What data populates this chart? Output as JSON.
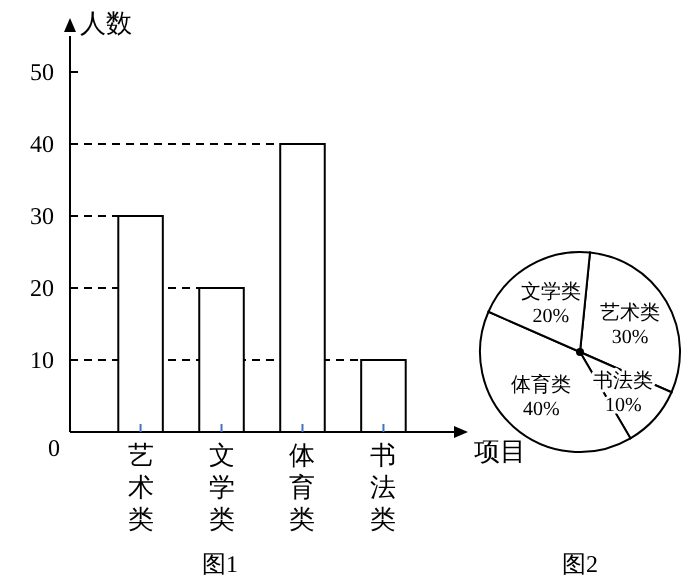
{
  "chart_data": [
    {
      "type": "bar",
      "ylabel": "人数",
      "xlabel": "项目",
      "categories": [
        "艺术类",
        "文学类",
        "体育类",
        "书法类"
      ],
      "values": [
        30,
        20,
        40,
        10
      ],
      "color": "#ffffff",
      "ylim": [
        0,
        55
      ],
      "yticks": [
        0,
        10,
        20,
        30,
        40,
        50
      ],
      "ref_lines": [
        {
          "axis": "y",
          "value": 40,
          "line_style": "dashed"
        },
        {
          "axis": "y",
          "value": 30,
          "line_style": "dashed"
        },
        {
          "axis": "y",
          "value": 20,
          "line_style": "dashed"
        },
        {
          "axis": "y",
          "value": 10,
          "line_style": "dashed"
        }
      ],
      "annotations": [
        "图1"
      ]
    },
    {
      "type": "pie",
      "categories": [
        "艺术类",
        "书法类",
        "体育类",
        "文学类"
      ],
      "values": [
        30,
        10,
        40,
        20
      ],
      "colors": [
        "#ffffff",
        "#ffffff",
        "#ffffff",
        "#ffffff"
      ],
      "value_labels": [
        "30%",
        "10%",
        "40%",
        "20%"
      ],
      "annotations": [
        "图2"
      ]
    }
  ]
}
